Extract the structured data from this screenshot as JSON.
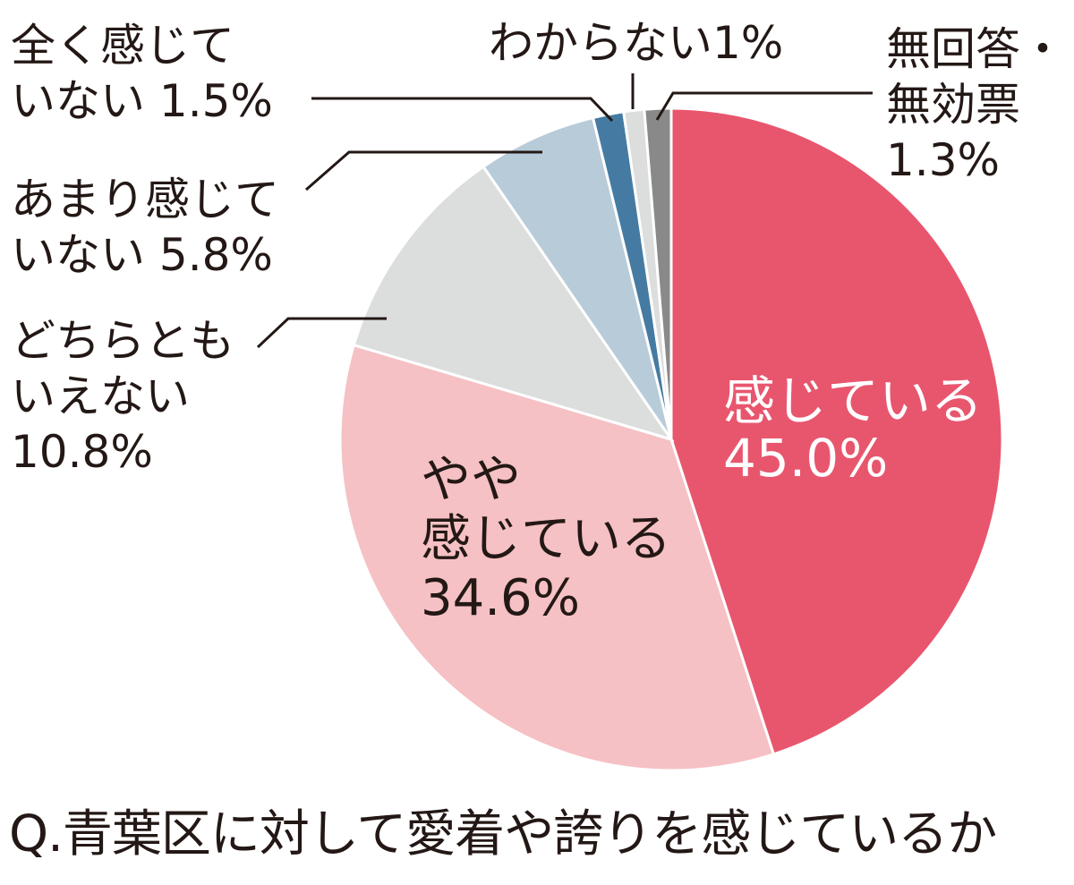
{
  "chart_data": {
    "type": "pie",
    "title": "Q.青葉区に対して愛着や誇りを感じているか",
    "start": "12 o'clock",
    "direction": "clockwise",
    "slices": [
      {
        "lines": [
          "感じている",
          "45.0%"
        ],
        "value": 45.0,
        "color": "#e8566e"
      },
      {
        "lines": [
          "やや",
          "感じている",
          "34.6%"
        ],
        "value": 34.6,
        "color": "#f5c1c4"
      },
      {
        "lines": [
          "どちらとも",
          "いえない",
          "10.8%"
        ],
        "value": 10.8,
        "color": "#dcdddd"
      },
      {
        "lines": [
          "あまり感じて",
          "いない 5.8%"
        ],
        "value": 5.8,
        "color": "#b7cbd9"
      },
      {
        "lines": [
          "全く感じて",
          "いない 1.5%"
        ],
        "value": 1.5,
        "color": "#457ba2"
      },
      {
        "lines": [
          "わからない1%"
        ],
        "value": 1.0,
        "color": "#dcdddd"
      },
      {
        "lines": [
          "無回答・",
          "無効票",
          "1.3%"
        ],
        "value": 1.3,
        "color": "#898989"
      }
    ]
  }
}
